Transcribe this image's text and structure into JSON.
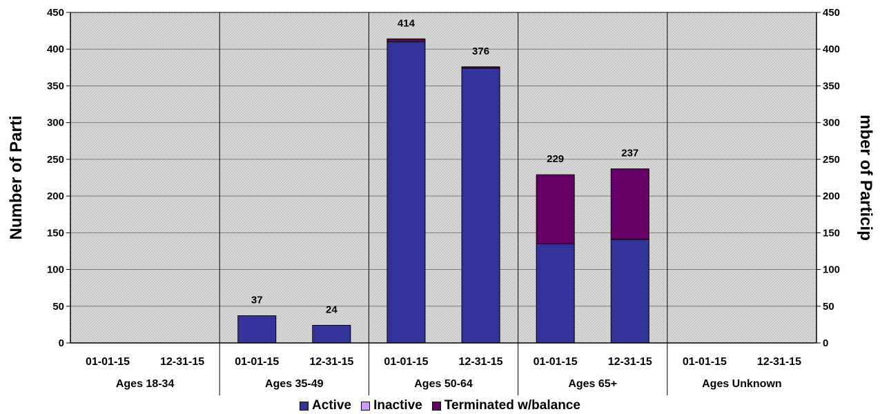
{
  "chart_data": {
    "type": "bar",
    "stacked": true,
    "groups": [
      {
        "name": "Ages 18-34",
        "categories": [
          "01-01-15",
          "12-31-15"
        ]
      },
      {
        "name": "Ages 35-49",
        "categories": [
          "01-01-15",
          "12-31-15"
        ]
      },
      {
        "name": "Ages 50-64",
        "categories": [
          "01-01-15",
          "12-31-15"
        ]
      },
      {
        "name": "Ages 65+",
        "categories": [
          "01-01-15",
          "12-31-15"
        ]
      },
      {
        "name": "Ages Unknown",
        "categories": [
          "01-01-15",
          "12-31-15"
        ]
      }
    ],
    "series": [
      {
        "name": "Active",
        "color": "#333399",
        "values": [
          0,
          0,
          37,
          24,
          410,
          374,
          135,
          141,
          0,
          0
        ]
      },
      {
        "name": "Inactive",
        "color": "#CC99FF",
        "values": [
          0,
          0,
          0,
          0,
          0,
          0,
          0,
          0,
          0,
          0
        ]
      },
      {
        "name": "Terminated w/balance",
        "color": "#660066",
        "values": [
          0,
          0,
          0,
          0,
          4,
          2,
          94,
          96,
          0,
          0
        ]
      }
    ],
    "totals": [
      "",
      "",
      "37",
      "24",
      "414",
      "376",
      "229",
      "237",
      "",
      ""
    ],
    "ylim": [
      0,
      450
    ],
    "yticks": [
      "0",
      "50",
      "100",
      "150",
      "200",
      "250",
      "300",
      "350",
      "400",
      "450"
    ],
    "ylabel_left": "Number of Parti",
    "ylabel_right": "mber of Particip",
    "grid": true,
    "legend_position": "bottom"
  }
}
